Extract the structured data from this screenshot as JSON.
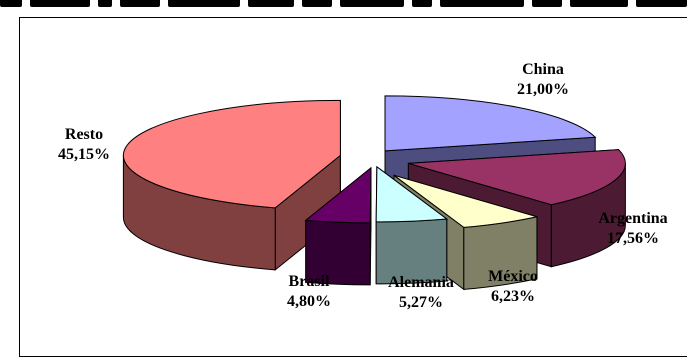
{
  "chart_data": {
    "type": "pie",
    "style": "3d-exploded",
    "title": "",
    "legend": "none",
    "slices": [
      {
        "label": "China",
        "value_label": "21,00%",
        "value": 21.0,
        "color": "#a3a3ff",
        "side_color": "#4d4d80"
      },
      {
        "label": "Argentina",
        "value_label": "17,56%",
        "value": 17.56,
        "color": "#993366",
        "side_color": "#4d1a33"
      },
      {
        "label": "México",
        "value_label": "6,23%",
        "value": 6.23,
        "color": "#ffffcc",
        "side_color": "#808066"
      },
      {
        "label": "Alemania",
        "value_label": "5,27%",
        "value": 5.27,
        "color": "#ccffff",
        "side_color": "#668080"
      },
      {
        "label": "Brasil",
        "value_label": "4,80%",
        "value": 4.8,
        "color": "#660066",
        "side_color": "#330033"
      },
      {
        "label": "Resto",
        "value_label": "45,15%",
        "value": 45.15,
        "color": "#ff8080",
        "side_color": "#804040"
      }
    ]
  }
}
